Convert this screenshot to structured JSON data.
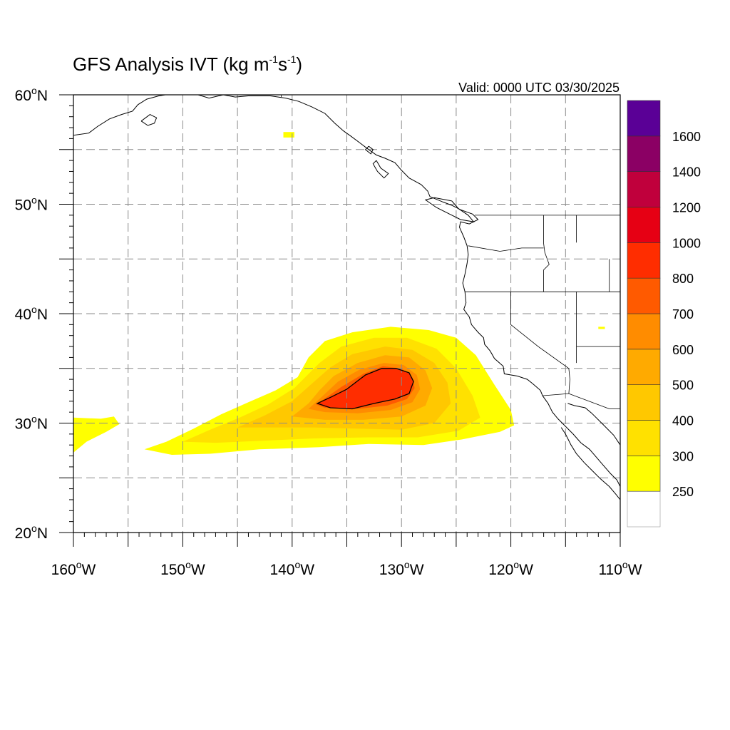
{
  "title": {
    "main": "GFS Analysis IVT (kg m",
    "exp1": "-1",
    "mid": "s",
    "exp2": "-1",
    "close": ")"
  },
  "valid_text": "Valid: 0000 UTC 03/30/2025",
  "map": {
    "projection": "cylindrical-equidistant",
    "lon_range": [
      -160,
      -110
    ],
    "lat_range": [
      20,
      60
    ],
    "grid": "dashed gray every 5 degrees",
    "lon_ticks": [
      {
        "value": -160,
        "label": "160",
        "unit": "o",
        "hemi": "W"
      },
      {
        "value": -150,
        "label": "150",
        "unit": "o",
        "hemi": "W"
      },
      {
        "value": -140,
        "label": "140",
        "unit": "o",
        "hemi": "W"
      },
      {
        "value": -130,
        "label": "130",
        "unit": "o",
        "hemi": "W"
      },
      {
        "value": -120,
        "label": "120",
        "unit": "o",
        "hemi": "W"
      },
      {
        "value": -110,
        "label": "110",
        "unit": "o",
        "hemi": "W"
      }
    ],
    "lat_ticks": [
      {
        "value": 60,
        "label": "60",
        "unit": "o",
        "hemi": "N"
      },
      {
        "value": 50,
        "label": "50",
        "unit": "o",
        "hemi": "N"
      },
      {
        "value": 40,
        "label": "40",
        "unit": "o",
        "hemi": "N"
      },
      {
        "value": 30,
        "label": "30",
        "unit": "o",
        "hemi": "N"
      },
      {
        "value": 20,
        "label": "20",
        "unit": "o",
        "hemi": "N"
      }
    ]
  },
  "colorbar": {
    "levels": [
      "250",
      "300",
      "400",
      "500",
      "600",
      "700",
      "800",
      "1000",
      "1200",
      "1400",
      "1600"
    ],
    "colors": [
      "#ffffff",
      "#ffff00",
      "#ffe100",
      "#ffc800",
      "#ffaa00",
      "#ff8c00",
      "#ff5a00",
      "#ff2d00",
      "#e60014",
      "#c0003c",
      "#8b0064",
      "#5a0096"
    ]
  },
  "ivt_field": {
    "contour_level": "800",
    "bands": [
      {
        "level": "250",
        "color": "#ffff00",
        "lonlat": [
          [
            -138.5,
            36.0
          ],
          [
            -137.0,
            37.5
          ],
          [
            -134.5,
            38.3
          ],
          [
            -131.0,
            38.8
          ],
          [
            -127.5,
            38.5
          ],
          [
            -125.0,
            37.8
          ],
          [
            -123.2,
            36.2
          ],
          [
            -121.5,
            33.5
          ],
          [
            -120.0,
            31.2
          ],
          [
            -119.7,
            29.8
          ],
          [
            -121.0,
            29.2
          ],
          [
            -124.5,
            28.5
          ],
          [
            -128.0,
            28.0
          ],
          [
            -133.0,
            28.1
          ],
          [
            -137.5,
            27.8
          ],
          [
            -143.0,
            27.6
          ],
          [
            -147.5,
            27.2
          ],
          [
            -151.0,
            27.1
          ],
          [
            -153.5,
            27.6
          ],
          [
            -151.5,
            28.3
          ],
          [
            -149.0,
            29.5
          ],
          [
            -146.5,
            30.8
          ],
          [
            -144.0,
            31.9
          ],
          [
            -141.5,
            33.0
          ],
          [
            -139.5,
            34.2
          ]
        ]
      },
      {
        "level": "250",
        "color": "#ffff00",
        "lonlat": [
          [
            -160,
            30.5
          ],
          [
            -157.5,
            30.4
          ],
          [
            -156.3,
            30.6
          ],
          [
            -155.8,
            29.9
          ],
          [
            -157.0,
            29.2
          ],
          [
            -158.8,
            28.3
          ],
          [
            -160,
            27.3
          ]
        ]
      },
      {
        "level": "250",
        "color": "#ffff00",
        "lonlat": [
          [
            -140.8,
            56.6
          ],
          [
            -139.8,
            56.6
          ],
          [
            -139.8,
            56.1
          ],
          [
            -140.8,
            56.1
          ]
        ]
      },
      {
        "level": "250",
        "color": "#ffff00",
        "lonlat": [
          [
            -112.0,
            38.8
          ],
          [
            -111.4,
            38.8
          ],
          [
            -111.4,
            38.6
          ],
          [
            -112.0,
            38.6
          ]
        ]
      },
      {
        "level": "300",
        "color": "#ffe100",
        "lonlat": [
          [
            -137.5,
            35.5
          ],
          [
            -135.5,
            37.0
          ],
          [
            -132.5,
            37.8
          ],
          [
            -129.5,
            37.8
          ],
          [
            -126.8,
            36.8
          ],
          [
            -125.0,
            35.0
          ],
          [
            -123.5,
            32.5
          ],
          [
            -122.8,
            30.5
          ],
          [
            -124.8,
            29.3
          ],
          [
            -128.5,
            28.7
          ],
          [
            -133.0,
            28.7
          ],
          [
            -138.0,
            28.6
          ],
          [
            -142.5,
            28.4
          ],
          [
            -147.0,
            28.2
          ],
          [
            -150.0,
            28.3
          ],
          [
            -147.5,
            29.4
          ],
          [
            -144.8,
            30.5
          ],
          [
            -142.2,
            31.7
          ],
          [
            -139.8,
            33.2
          ]
        ]
      },
      {
        "level": "400",
        "color": "#ffc800",
        "lonlat": [
          [
            -136.5,
            35.1
          ],
          [
            -134.5,
            36.3
          ],
          [
            -131.5,
            37.0
          ],
          [
            -129.0,
            36.7
          ],
          [
            -127.0,
            35.5
          ],
          [
            -125.8,
            33.7
          ],
          [
            -125.5,
            31.8
          ],
          [
            -127.0,
            30.0
          ],
          [
            -130.0,
            29.4
          ],
          [
            -134.0,
            29.5
          ],
          [
            -138.0,
            29.6
          ],
          [
            -141.8,
            29.6
          ],
          [
            -145.0,
            29.6
          ],
          [
            -142.5,
            30.7
          ],
          [
            -140.0,
            32.0
          ],
          [
            -138.2,
            33.6
          ]
        ]
      },
      {
        "level": "500",
        "color": "#ffaa00",
        "lonlat": [
          [
            -136.2,
            34.3
          ],
          [
            -134.0,
            35.5
          ],
          [
            -131.5,
            36.2
          ],
          [
            -129.3,
            36.0
          ],
          [
            -127.8,
            34.8
          ],
          [
            -127.2,
            33.2
          ],
          [
            -127.8,
            31.6
          ],
          [
            -130.0,
            30.6
          ],
          [
            -133.5,
            30.3
          ],
          [
            -137.0,
            30.3
          ],
          [
            -140.0,
            30.6
          ],
          [
            -138.5,
            31.8
          ],
          [
            -137.5,
            33.0
          ]
        ]
      },
      {
        "level": "600",
        "color": "#ff8c00",
        "lonlat": [
          [
            -135.8,
            33.8
          ],
          [
            -133.8,
            34.9
          ],
          [
            -131.6,
            35.5
          ],
          [
            -129.8,
            35.3
          ],
          [
            -128.6,
            34.4
          ],
          [
            -128.3,
            33.1
          ],
          [
            -129.0,
            31.9
          ],
          [
            -131.0,
            31.2
          ],
          [
            -134.0,
            30.9
          ],
          [
            -137.0,
            31.0
          ],
          [
            -138.5,
            31.3
          ],
          [
            -137.3,
            32.4
          ]
        ]
      },
      {
        "level": "700",
        "color": "#ff5a00",
        "lonlat": [
          [
            -135.5,
            33.3
          ],
          [
            -133.5,
            34.5
          ],
          [
            -131.7,
            35.2
          ],
          [
            -130.0,
            35.0
          ],
          [
            -129.0,
            34.2
          ],
          [
            -128.8,
            33.2
          ],
          [
            -129.5,
            32.2
          ],
          [
            -131.3,
            31.6
          ],
          [
            -134.0,
            31.3
          ],
          [
            -137.0,
            31.4
          ],
          [
            -137.8,
            31.7
          ],
          [
            -136.8,
            32.4
          ]
        ]
      },
      {
        "level": "800",
        "color": "#ff2d00",
        "lonlat": [
          [
            -135.0,
            33.1
          ],
          [
            -133.3,
            34.4
          ],
          [
            -131.8,
            35.0
          ],
          [
            -130.5,
            35.0
          ],
          [
            -129.3,
            34.6
          ],
          [
            -128.9,
            33.8
          ],
          [
            -129.3,
            32.7
          ],
          [
            -130.6,
            32.2
          ],
          [
            -132.5,
            31.8
          ],
          [
            -134.5,
            31.3
          ],
          [
            -136.5,
            31.4
          ],
          [
            -137.7,
            31.8
          ],
          [
            -136.4,
            32.4
          ]
        ]
      }
    ]
  },
  "coastlines": [
    [
      [
        -160,
        56.3
      ],
      [
        -158.6,
        56.5
      ],
      [
        -157.8,
        57.1
      ],
      [
        -156.7,
        57.8
      ],
      [
        -155.6,
        58.2
      ],
      [
        -154.6,
        58.5
      ],
      [
        -154.1,
        59.1
      ],
      [
        -153.3,
        59.6
      ],
      [
        -152.2,
        59.9
      ],
      [
        -151.6,
        60
      ]
    ],
    [
      [
        -148.6,
        60
      ],
      [
        -147.6,
        59.7
      ],
      [
        -146.3,
        60
      ],
      [
        -145.2,
        59.8
      ],
      [
        -144.0,
        59.9
      ],
      [
        -142.0,
        59.9
      ],
      [
        -140.6,
        59.7
      ],
      [
        -139.4,
        59.4
      ],
      [
        -138.2,
        58.9
      ],
      [
        -137.0,
        58.3
      ],
      [
        -136.1,
        57.4
      ],
      [
        -135.3,
        56.7
      ],
      [
        -134.6,
        56.2
      ],
      [
        -133.8,
        55.6
      ],
      [
        -133.0,
        55.0
      ],
      [
        -132.3,
        54.5
      ],
      [
        -131.5,
        54.2
      ],
      [
        -130.6,
        53.8
      ],
      [
        -130.0,
        53.1
      ],
      [
        -129.3,
        52.4
      ],
      [
        -128.2,
        51.8
      ],
      [
        -127.6,
        51.2
      ],
      [
        -127.4,
        50.7
      ],
      [
        -126.2,
        50.2
      ],
      [
        -125.4,
        49.9
      ],
      [
        -124.6,
        49.5
      ],
      [
        -123.5,
        49.1
      ],
      [
        -123.0,
        48.6
      ],
      [
        -123.8,
        48.2
      ],
      [
        -124.6,
        48.4
      ],
      [
        -124.7,
        47.9
      ],
      [
        -124.3,
        47.0
      ],
      [
        -124.0,
        46.2
      ],
      [
        -123.9,
        45.4
      ],
      [
        -124.0,
        44.6
      ],
      [
        -124.2,
        43.6
      ],
      [
        -124.4,
        42.8
      ],
      [
        -124.2,
        42.0
      ],
      [
        -124.1,
        41.0
      ],
      [
        -124.3,
        40.4
      ],
      [
        -123.8,
        39.7
      ],
      [
        -123.6,
        39.0
      ],
      [
        -123.0,
        38.3
      ],
      [
        -122.5,
        37.8
      ],
      [
        -122.4,
        37.2
      ],
      [
        -121.9,
        36.6
      ],
      [
        -121.5,
        35.9
      ],
      [
        -120.7,
        35.2
      ],
      [
        -120.6,
        34.5
      ],
      [
        -119.4,
        34.3
      ],
      [
        -118.5,
        34.0
      ],
      [
        -118.0,
        33.6
      ],
      [
        -117.3,
        33.0
      ],
      [
        -117.1,
        32.5
      ],
      [
        -116.6,
        31.8
      ],
      [
        -116.2,
        31.0
      ],
      [
        -115.7,
        30.4
      ],
      [
        -115.0,
        29.7
      ],
      [
        -114.3,
        29.0
      ],
      [
        -113.6,
        28.2
      ],
      [
        -112.8,
        27.6
      ],
      [
        -112.2,
        26.9
      ],
      [
        -111.6,
        26.2
      ],
      [
        -110.9,
        25.4
      ],
      [
        -110.3,
        24.8
      ],
      [
        -110,
        24.2
      ]
    ],
    [
      [
        -133.0,
        55.3
      ],
      [
        -132.6,
        55.0
      ],
      [
        -132.8,
        54.6
      ],
      [
        -133.3,
        55.0
      ],
      [
        -133.0,
        55.3
      ]
    ],
    [
      [
        -132.3,
        54.0
      ],
      [
        -131.9,
        53.3
      ],
      [
        -131.2,
        52.8
      ],
      [
        -131.6,
        52.4
      ],
      [
        -132.2,
        53.0
      ],
      [
        -132.6,
        53.7
      ],
      [
        -132.3,
        54.0
      ]
    ],
    [
      [
        -125.4,
        50.3
      ],
      [
        -124.8,
        49.6
      ],
      [
        -123.9,
        49.0
      ],
      [
        -123.4,
        48.4
      ],
      [
        -124.6,
        48.6
      ],
      [
        -125.6,
        49.1
      ],
      [
        -126.8,
        49.7
      ],
      [
        -127.8,
        50.4
      ],
      [
        -127.0,
        50.6
      ],
      [
        -125.4,
        50.3
      ]
    ],
    [
      [
        -153.8,
        57.6
      ],
      [
        -153.2,
        57.2
      ],
      [
        -152.6,
        57.4
      ],
      [
        -152.4,
        57.9
      ],
      [
        -153.0,
        58.2
      ],
      [
        -153.8,
        57.6
      ]
    ],
    [
      [
        -115.4,
        29.6
      ],
      [
        -115.0,
        29.0
      ],
      [
        -114.5,
        28.0
      ],
      [
        -114.0,
        27.2
      ],
      [
        -113.3,
        26.4
      ],
      [
        -112.5,
        25.6
      ],
      [
        -111.8,
        24.9
      ],
      [
        -111.0,
        24.2
      ],
      [
        -110.4,
        23.5
      ],
      [
        -110.0,
        23.0
      ]
    ],
    [
      [
        -110,
        28.0
      ],
      [
        -110.6,
        28.9
      ],
      [
        -111.6,
        29.9
      ],
      [
        -112.6,
        30.9
      ],
      [
        -113.2,
        31.4
      ],
      [
        -114.2,
        31.6
      ],
      [
        -114.8,
        31.8
      ]
    ]
  ],
  "borders": [
    [
      [
        -123.3,
        49.0
      ],
      [
        -122.0,
        49.0
      ],
      [
        -117.0,
        49.0
      ],
      [
        -114.0,
        49.0
      ],
      [
        -110,
        49.0
      ]
    ],
    [
      [
        -141.0,
        60
      ],
      [
        -141.0,
        59.8
      ]
    ],
    [
      [
        -124.2,
        42.0
      ],
      [
        -120.0,
        42.0
      ],
      [
        -117.0,
        42.0
      ],
      [
        -114.0,
        42.0
      ],
      [
        -111.0,
        42.0
      ],
      [
        -110,
        42.0
      ]
    ],
    [
      [
        -123.9,
        46.2
      ],
      [
        -121.0,
        45.7
      ],
      [
        -119.0,
        46.0
      ],
      [
        -117.0,
        46.0
      ]
    ],
    [
      [
        -117.0,
        49.0
      ],
      [
        -117.0,
        46.4
      ],
      [
        -116.9,
        45.6
      ],
      [
        -116.5,
        44.5
      ],
      [
        -117.0,
        44.0
      ],
      [
        -117.0,
        42.0
      ]
    ],
    [
      [
        -114.0,
        49.0
      ],
      [
        -114.0,
        46.5
      ]
    ],
    [
      [
        -120.0,
        42.0
      ],
      [
        -120.0,
        39.0
      ],
      [
        -117.5,
        37.0
      ],
      [
        -114.7,
        35.0
      ],
      [
        -114.6,
        34.0
      ],
      [
        -114.7,
        32.7
      ]
    ],
    [
      [
        -114.0,
        42.0
      ],
      [
        -114.0,
        37.0
      ],
      [
        -114.0,
        35.5
      ]
    ],
    [
      [
        -111.0,
        45.0
      ],
      [
        -111.0,
        42.0
      ]
    ],
    [
      [
        -114.0,
        37.0
      ],
      [
        -110,
        37.0
      ]
    ],
    [
      [
        -117.1,
        32.5
      ],
      [
        -114.7,
        32.7
      ],
      [
        -111.0,
        31.3
      ],
      [
        -110,
        31.3
      ]
    ]
  ]
}
